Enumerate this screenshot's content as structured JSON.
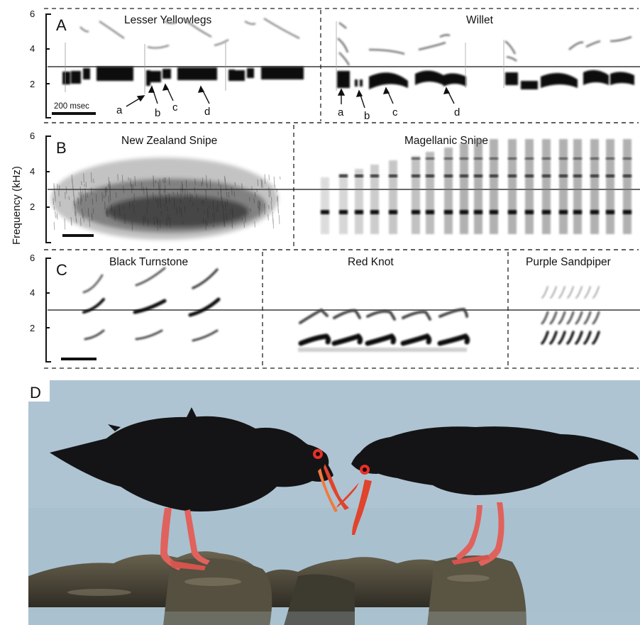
{
  "y_axis_label": "Frequency (kHz)",
  "ticks": [
    "6",
    "4",
    "2"
  ],
  "scale_bar_label": "200 msec",
  "panels": {
    "A": {
      "letter": "A",
      "species": [
        "Lesser Yellowlegs",
        "Willet"
      ],
      "note_labels_left": [
        "a",
        "b",
        "c",
        "d"
      ],
      "note_labels_right": [
        "a",
        "b",
        "c",
        "d"
      ]
    },
    "B": {
      "letter": "B",
      "species": [
        "New Zealand Snipe",
        "Magellanic Snipe"
      ]
    },
    "C": {
      "letter": "C",
      "species": [
        "Black Turnstone",
        "Red Knot",
        "Purple Sandpiper"
      ]
    },
    "D": {
      "letter": "D",
      "photo_subject": "two black oystercatchers with red bills on rocks"
    }
  },
  "colors": {
    "sky": "#a9c0cf",
    "bird": "#141416",
    "bill": "#e0442c",
    "legs": "#e0625c",
    "eye": "#e8302a",
    "rock": "#4a4537"
  }
}
